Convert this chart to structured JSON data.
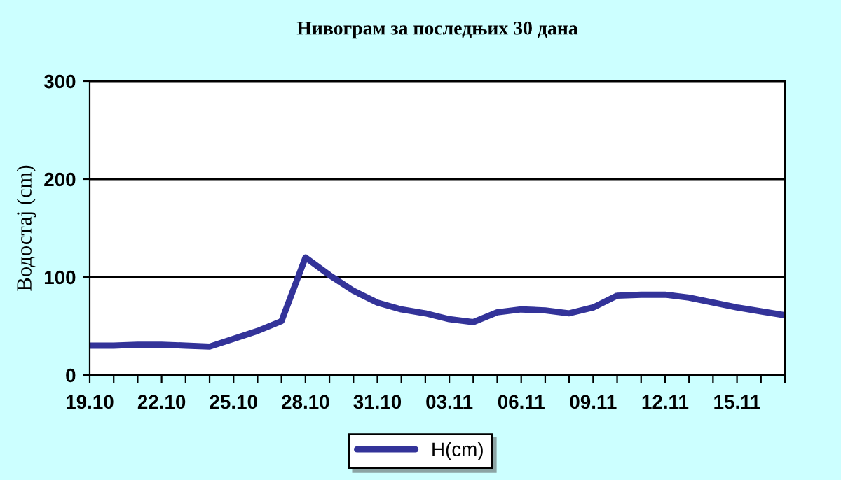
{
  "chart_data": {
    "type": "line",
    "title": "Нивограм за последњих 30 дана",
    "ylabel": "Водостај (cm)",
    "categories": [
      "19.10",
      null,
      null,
      "22.10",
      null,
      null,
      "25.10",
      null,
      null,
      "28.10",
      null,
      null,
      "31.10",
      null,
      null,
      "03.11",
      null,
      null,
      "06.11",
      null,
      null,
      "09.11",
      null,
      null,
      "12.11",
      null,
      null,
      "15.11",
      null,
      null
    ],
    "series": [
      {
        "name": "H(cm)",
        "color": "#333399",
        "values": [
          30,
          30,
          31,
          31,
          30,
          29,
          37,
          45,
          55,
          120,
          102,
          86,
          74,
          67,
          63,
          57,
          54,
          64,
          67,
          66,
          63,
          69,
          81,
          82,
          82,
          79,
          74,
          69,
          65,
          61
        ]
      }
    ],
    "ylim": [
      0,
      300
    ],
    "yticks": [
      0,
      100,
      200,
      300
    ],
    "grid": "y",
    "legend": "bottom",
    "marker": "none",
    "line_style": "solid"
  }
}
